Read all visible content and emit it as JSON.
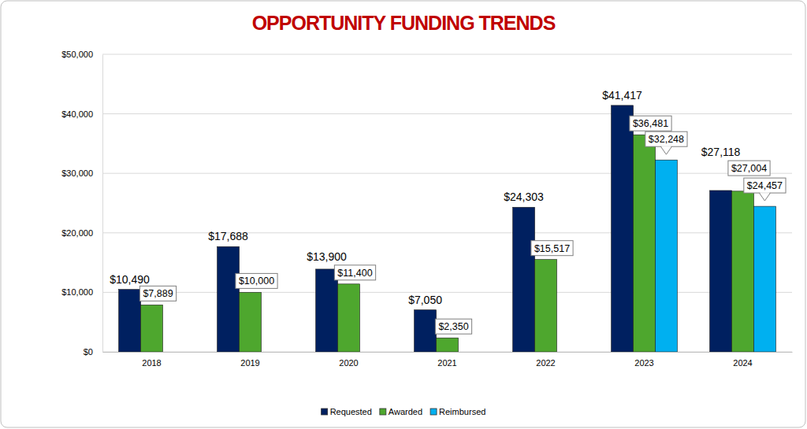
{
  "chart_data": {
    "type": "bar",
    "title": "OPPORTUNITY FUNDING TRENDS",
    "categories": [
      "2018",
      "2019",
      "2020",
      "2021",
      "2022",
      "2023",
      "2024"
    ],
    "series": [
      {
        "name": "Requested",
        "color": "#002060",
        "values": [
          10490,
          17688,
          13900,
          7050,
          24303,
          41417,
          27118
        ],
        "value_labels": [
          "$10,490",
          "$17,688",
          "$13,900",
          "$7,050",
          "$24,303",
          "$41,417",
          "$27,118"
        ]
      },
      {
        "name": "Awarded",
        "color": "#4ea72e",
        "values": [
          7889,
          10000,
          11400,
          2350,
          15517,
          36481,
          27004
        ],
        "value_labels": [
          "$7,889",
          "$10,000",
          "$11,400",
          "$2,350",
          "$15,517",
          "$36,481",
          "$27,004"
        ]
      },
      {
        "name": "Reimbursed",
        "color": "#00b0f0",
        "values": [
          null,
          null,
          null,
          null,
          null,
          32248,
          24457
        ],
        "value_labels": [
          null,
          null,
          null,
          null,
          null,
          "$32,248",
          "$24,457"
        ]
      }
    ],
    "ylim": [
      0,
      50000
    ],
    "yticks": [
      {
        "value": 0,
        "label": "$0"
      },
      {
        "value": 10000,
        "label": "$10,000"
      },
      {
        "value": 20000,
        "label": "$20,000"
      },
      {
        "value": 30000,
        "label": "$30,000"
      },
      {
        "value": 40000,
        "label": "$40,000"
      },
      {
        "value": 50000,
        "label": "$50,000"
      }
    ],
    "grid": true,
    "legend": "bottom",
    "data_labels": true
  }
}
